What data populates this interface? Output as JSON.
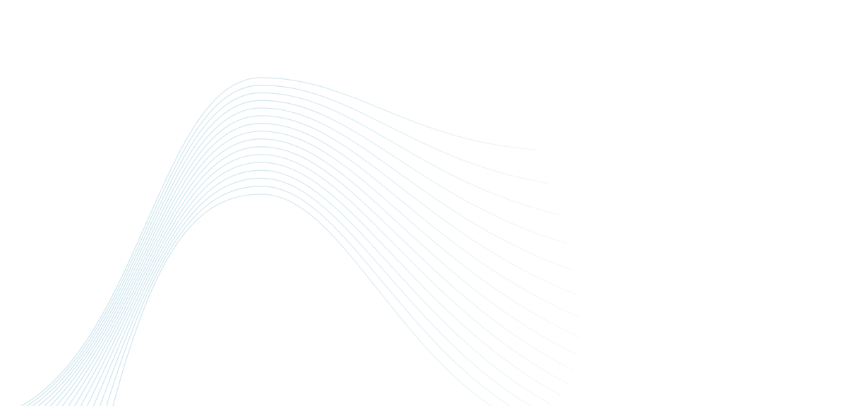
{
  "background": {
    "pattern": "flowing-wave-lines",
    "line_color": "#cfe6ee",
    "background_color": "#ffffff",
    "line_count": 16
  }
}
